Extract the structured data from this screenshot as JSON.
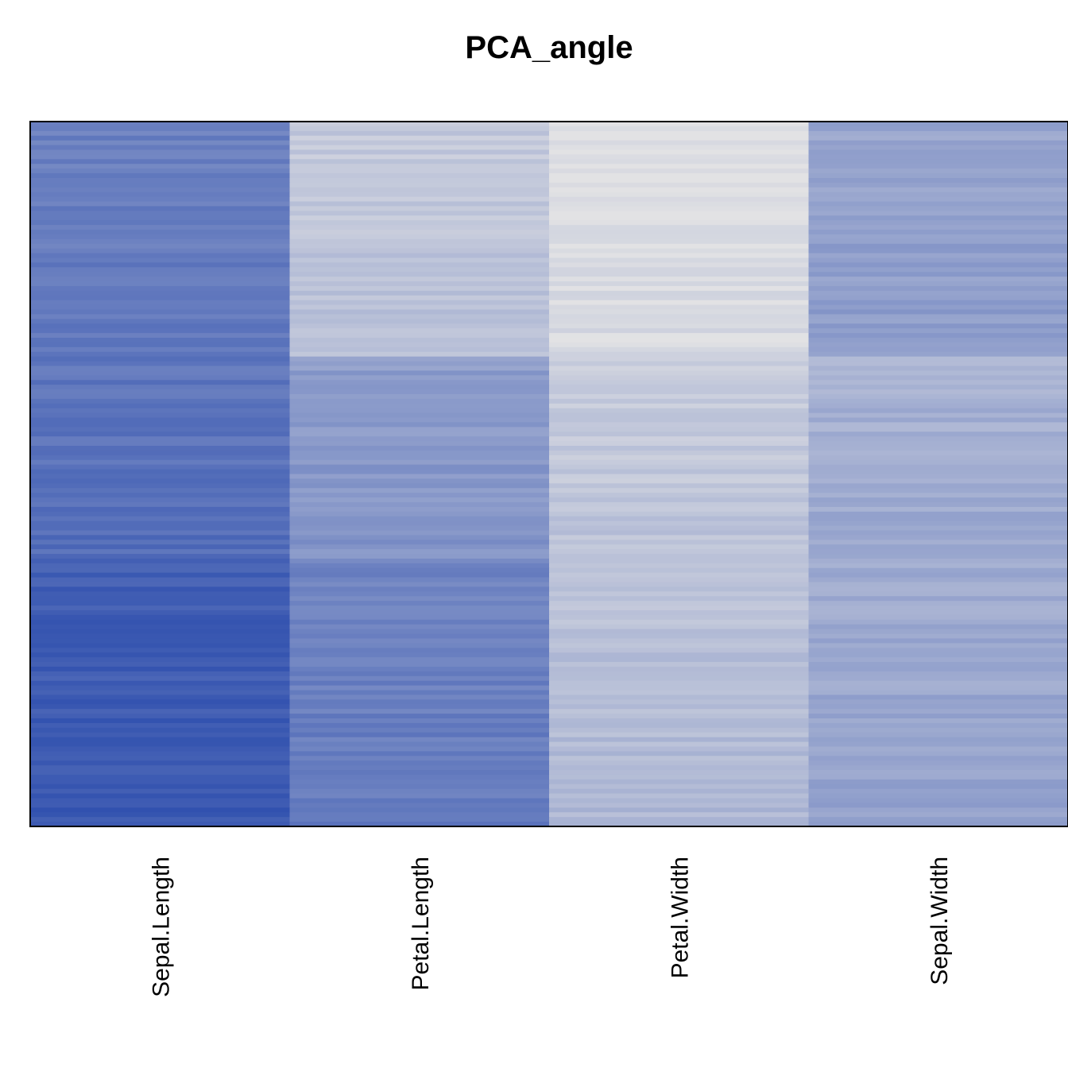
{
  "chart_data": {
    "type": "heatmap",
    "title": "PCA_angle",
    "xlabel": "",
    "ylabel": "",
    "columns": [
      "Sepal.Length",
      "Petal.Length",
      "Petal.Width",
      "Sepal.Width"
    ],
    "n_rows": 150,
    "value_range": [
      0,
      1
    ],
    "colors": {
      "low": "#e2e2e4",
      "high": "#1a3ea8",
      "border": "#000000",
      "background": "#ffffff"
    },
    "blocks": [
      {
        "rows": 50,
        "values": [
          0.62,
          0.18,
          0.03,
          0.4
        ]
      },
      {
        "rows": 43,
        "values": [
          0.68,
          0.45,
          0.16,
          0.32
        ]
      },
      {
        "rows": 57,
        "values": [
          0.82,
          0.6,
          0.23,
          0.36
        ]
      }
    ],
    "grid": false,
    "legend": "none"
  }
}
